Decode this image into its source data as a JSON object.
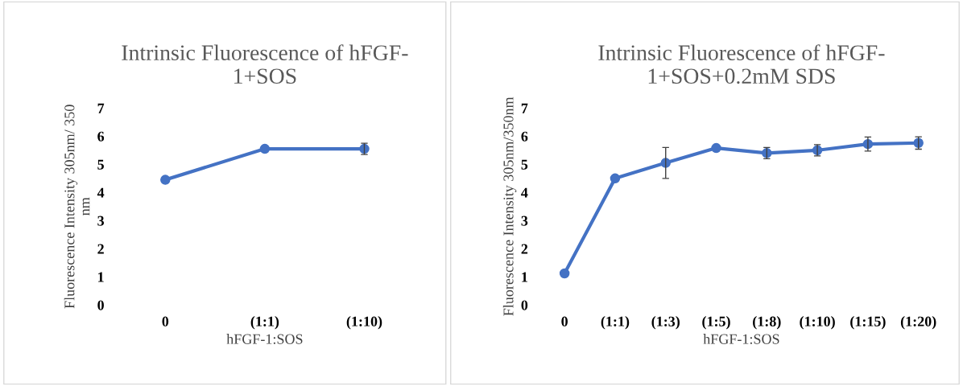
{
  "chart_data": [
    {
      "type": "line",
      "title": "Intrinsic Fluorescence of hFGF-\n1+SOS",
      "xlabel": "hFGF-1:SOS",
      "ylabel": "Fluorescence Intensity 305nm/ 350\nnm",
      "categories": [
        "0",
        "(1:1)",
        "(1:10)"
      ],
      "series": [
        {
          "color": "#4472c4",
          "values": [
            4.45,
            5.55,
            5.55
          ],
          "errors": [
            null,
            null,
            0.2
          ]
        }
      ],
      "ylim": [
        0,
        7
      ],
      "yticks": [
        0,
        1,
        2,
        3,
        4,
        5,
        6,
        7
      ],
      "grid": false,
      "legend": false,
      "marker": "circle",
      "line_style": "solid"
    },
    {
      "type": "line",
      "title": "Intrinsic Fluorescence of hFGF-\n1+SOS+0.2mM SDS",
      "xlabel": "hFGF-1:SOS",
      "ylabel": "Fluorescence Intensity 305nm/350nm",
      "categories": [
        "0",
        "(1:1)",
        "(1:3)",
        "(1:5)",
        "(1:8)",
        "(1:10)",
        "(1:15)",
        "(1:20)"
      ],
      "series": [
        {
          "color": "#4472c4",
          "values": [
            1.12,
            4.5,
            5.05,
            5.58,
            5.4,
            5.5,
            5.72,
            5.76
          ],
          "errors": [
            null,
            null,
            0.55,
            null,
            0.2,
            0.2,
            0.25,
            0.22
          ]
        }
      ],
      "ylim": [
        0,
        7
      ],
      "yticks": [
        0,
        1,
        2,
        3,
        4,
        5,
        6,
        7
      ],
      "grid": false,
      "legend": false,
      "marker": "circle",
      "line_style": "solid"
    }
  ]
}
